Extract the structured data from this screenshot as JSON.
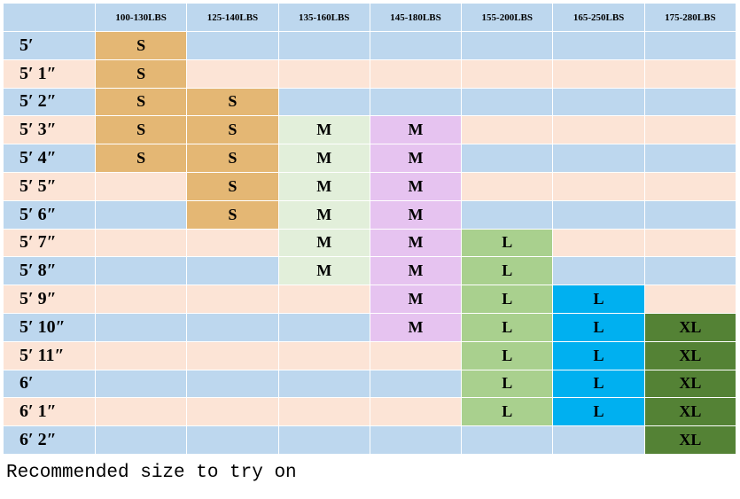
{
  "table": {
    "header": [
      "100-130LBS",
      "125-140LBS",
      "135-160LBS",
      "145-180LBS",
      "155-200LBS",
      "165-250LBS",
      "175-280LBS"
    ],
    "rows": [
      {
        "label": "5′",
        "cells": [
          "S",
          null,
          null,
          null,
          null,
          null,
          null
        ]
      },
      {
        "label": "5′ 1″",
        "cells": [
          "S",
          null,
          null,
          null,
          null,
          null,
          null
        ]
      },
      {
        "label": "5′ 2″",
        "cells": [
          "S",
          "S",
          null,
          null,
          null,
          null,
          null
        ]
      },
      {
        "label": "5′ 3″",
        "cells": [
          "S",
          "S",
          "M",
          "M",
          null,
          null,
          null
        ]
      },
      {
        "label": "5′ 4″",
        "cells": [
          "S",
          "S",
          "M",
          "M",
          null,
          null,
          null
        ]
      },
      {
        "label": "5′ 5″",
        "cells": [
          null,
          "S",
          "M",
          "M",
          null,
          null,
          null
        ]
      },
      {
        "label": "5′ 6″",
        "cells": [
          null,
          "S",
          "M",
          "M",
          null,
          null,
          null
        ]
      },
      {
        "label": "5′ 7″",
        "cells": [
          null,
          null,
          "M",
          "M",
          "L",
          null,
          null
        ]
      },
      {
        "label": "5′ 8″",
        "cells": [
          null,
          null,
          "M",
          "M",
          "L",
          null,
          null
        ]
      },
      {
        "label": "5′ 9″",
        "cells": [
          null,
          null,
          null,
          "M",
          "L",
          "L",
          null
        ]
      },
      {
        "label": "5′ 10″",
        "cells": [
          null,
          null,
          null,
          "M",
          "L",
          "L",
          "XL"
        ]
      },
      {
        "label": "5′ 11″",
        "cells": [
          null,
          null,
          null,
          null,
          "L",
          "L",
          "XL"
        ]
      },
      {
        "label": "6′",
        "cells": [
          null,
          null,
          null,
          null,
          "L",
          "L",
          "XL"
        ]
      },
      {
        "label": "6′ 1″",
        "cells": [
          null,
          null,
          null,
          null,
          "L",
          "L",
          "XL"
        ]
      },
      {
        "label": "6′ 2″",
        "cells": [
          null,
          null,
          null,
          null,
          null,
          null,
          "XL"
        ]
      }
    ]
  },
  "footer": "Recommended size to try on"
}
